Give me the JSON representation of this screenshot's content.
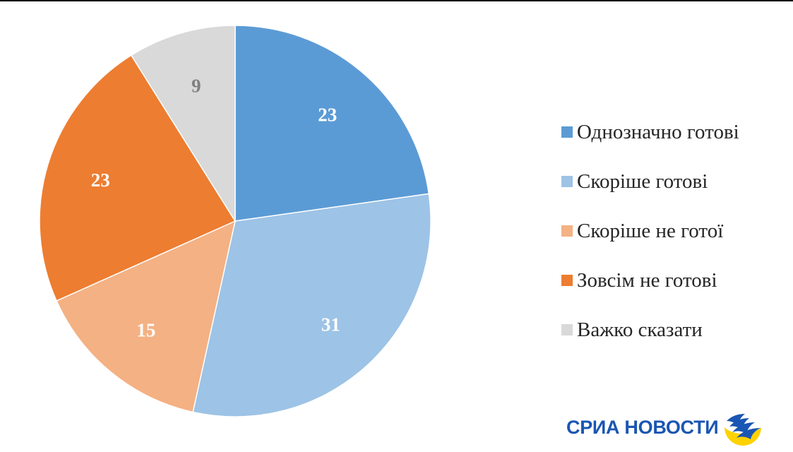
{
  "chart_data": {
    "type": "pie",
    "categories": [
      "Однозначно готові",
      "Скоріше готові",
      "Скоріше не готої",
      "Зовсім не готові",
      "Важко сказати"
    ],
    "values": [
      23,
      31,
      15,
      23,
      9
    ],
    "colors": [
      "#5b9bd5",
      "#9dc3e6",
      "#f4b183",
      "#ed7d31",
      "#d9d9d9"
    ],
    "label_colors": [
      "#ffffff",
      "#ffffff",
      "#ffffff",
      "#ffffff",
      "#7f7f7f"
    ],
    "start_angle_deg": 0,
    "direction": "clockwise",
    "legend_position": "right"
  },
  "logo": {
    "text": "СРИА НОВОСТИ",
    "color": "#1a56b3",
    "mark_colors": [
      "#1a56b3",
      "#ffd200"
    ]
  }
}
